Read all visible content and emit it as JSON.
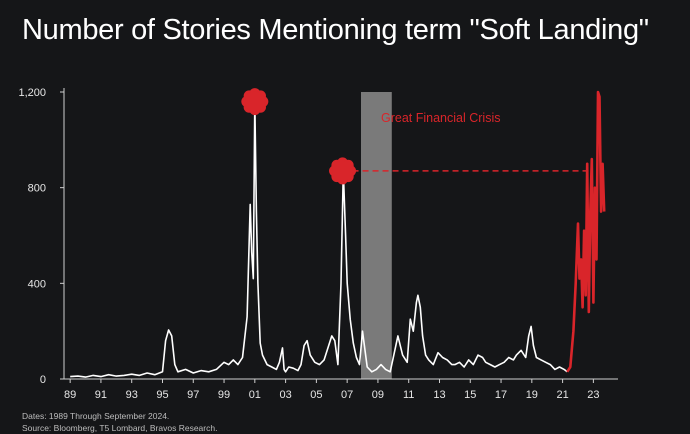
{
  "title": "Number of Stories Mentioning term \"Soft Landing\"",
  "notes": {
    "dates": "Dates: 1989 Through September 2024.",
    "source": "Source: Bloomberg, T5 Lombard, Bravos Research."
  },
  "colors": {
    "background": "#151618",
    "series_white": "#ffffff",
    "highlight_red": "#d9252a",
    "crisis_band": "#7a7a7a"
  },
  "chart_data": {
    "type": "line",
    "title": "Number of Stories Mentioning term \"Soft Landing\"",
    "xlabel": "",
    "ylabel": "",
    "xlim": [
      1989,
      2024.75
    ],
    "ylim": [
      0,
      1200
    ],
    "grid": false,
    "x_ticks": [
      1989,
      1991,
      1993,
      1995,
      1997,
      1999,
      2001,
      2003,
      2005,
      2007,
      2009,
      2011,
      2013,
      2015,
      2017,
      2019,
      2021,
      2023
    ],
    "x_tick_labels": [
      "89",
      "91",
      "93",
      "95",
      "97",
      "99",
      "01",
      "03",
      "05",
      "07",
      "09",
      "11",
      "13",
      "15",
      "17",
      "19",
      "21",
      "23"
    ],
    "y_ticks": [
      0,
      400,
      800,
      1200
    ],
    "y_tick_labels": [
      "0",
      "400",
      "800",
      "1,200"
    ],
    "annotations": [
      {
        "text": "Great Financial Crisis",
        "type": "shaded-band",
        "x_start": 2007.9,
        "x_end": 2009.9
      },
      {
        "type": "peak-marker",
        "x": 2001.0,
        "y": 1160
      },
      {
        "type": "peak-marker",
        "x": 2006.7,
        "y": 870
      },
      {
        "type": "dashed-reference-line",
        "y": 870,
        "x_start": 2006.7,
        "x_end": 2022.9
      }
    ],
    "series": [
      {
        "color": "#ffffff",
        "x": [
          1989.0,
          1989.5,
          1990.0,
          1990.5,
          1991.0,
          1991.5,
          1992.0,
          1992.5,
          1993.0,
          1993.5,
          1994.0,
          1994.5,
          1995.0,
          1995.2,
          1995.4,
          1995.6,
          1995.8,
          1996.0,
          1996.5,
          1997.0,
          1997.5,
          1998.0,
          1998.5,
          1999.0,
          1999.3,
          1999.6,
          1999.9,
          2000.2,
          2000.5,
          2000.7,
          2000.8,
          2000.9,
          2001.0,
          2001.1,
          2001.2,
          2001.35,
          2001.5,
          2001.8,
          2002.1,
          2002.4,
          2002.6,
          2002.8,
          2002.9,
          2003.0,
          2003.2,
          2003.5,
          2003.8,
          2004.0,
          2004.2,
          2004.4,
          2004.6,
          2004.9,
          2005.2,
          2005.5,
          2005.8,
          2006.0,
          2006.2,
          2006.4,
          2006.6,
          2006.75,
          2006.9,
          2007.0,
          2007.2,
          2007.4,
          2007.6,
          2007.8,
          2008.0,
          2008.3,
          2008.6,
          2008.9,
          2009.2,
          2009.5,
          2009.8,
          2010.0,
          2010.3,
          2010.6,
          2010.9,
          2011.1,
          2011.3,
          2011.5,
          2011.6,
          2011.75,
          2011.9,
          2012.1,
          2012.3,
          2012.6,
          2012.9,
          2013.2,
          2013.5,
          2013.8,
          2014.0,
          2014.3,
          2014.6,
          2014.9,
          2015.2,
          2015.5,
          2015.8,
          2016.0,
          2016.3,
          2016.6,
          2016.9,
          2017.2,
          2017.5,
          2017.8,
          2018.0,
          2018.3,
          2018.6,
          2018.8,
          2018.95,
          2019.1,
          2019.3,
          2019.6,
          2019.9,
          2020.2,
          2020.5,
          2020.8,
          2021.1,
          2021.3
        ],
        "y": [
          10,
          12,
          8,
          15,
          10,
          18,
          12,
          15,
          20,
          15,
          25,
          18,
          30,
          160,
          205,
          180,
          60,
          30,
          40,
          25,
          35,
          30,
          40,
          70,
          60,
          80,
          60,
          90,
          260,
          730,
          530,
          420,
          1160,
          700,
          400,
          150,
          100,
          60,
          50,
          40,
          70,
          130,
          40,
          30,
          50,
          45,
          35,
          60,
          140,
          160,
          100,
          70,
          60,
          80,
          140,
          180,
          160,
          60,
          400,
          870,
          600,
          400,
          250,
          150,
          90,
          60,
          200,
          50,
          30,
          40,
          60,
          40,
          30,
          90,
          180,
          100,
          70,
          250,
          200,
          320,
          350,
          300,
          180,
          100,
          80,
          60,
          110,
          90,
          80,
          60,
          60,
          70,
          50,
          80,
          60,
          100,
          90,
          70,
          60,
          50,
          60,
          70,
          90,
          80,
          100,
          120,
          90,
          180,
          220,
          140,
          90,
          80,
          70,
          60,
          40,
          50,
          40,
          30
        ]
      },
      {
        "color": "#d9252a",
        "x": [
          2021.3,
          2021.5,
          2021.7,
          2021.85,
          2022.0,
          2022.1,
          2022.2,
          2022.3,
          2022.4,
          2022.5,
          2022.6,
          2022.7,
          2022.8,
          2022.9,
          2023.0,
          2023.1,
          2023.2,
          2023.3,
          2023.4,
          2023.5,
          2023.6,
          2023.7
        ],
        "y": [
          30,
          50,
          200,
          400,
          650,
          420,
          500,
          300,
          620,
          350,
          900,
          280,
          700,
          920,
          320,
          800,
          500,
          1200,
          1180,
          700,
          900,
          700
        ]
      }
    ]
  }
}
